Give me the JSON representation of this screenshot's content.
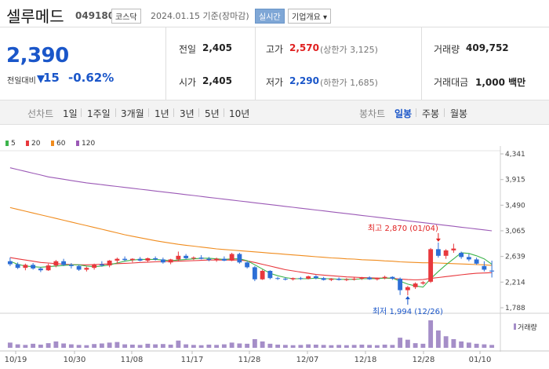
{
  "header": {
    "name": "셀루메드",
    "code": "049180",
    "market": "코스닥",
    "date_text": "2024.01.15 기준(장마감)",
    "realtime_label": "실시간",
    "company_menu_label": "기업개요 ▾"
  },
  "quote": {
    "price": "2,390",
    "change_label": "전일대비",
    "change_value": "15",
    "change_pct": "-0.62%",
    "prev_close_label": "전일",
    "prev_close": "2,405",
    "open_label": "시가",
    "open": "2,405",
    "high_label": "고가",
    "high": "2,570",
    "upper_limit": "(상한가 3,125)",
    "low_label": "저가",
    "low": "2,290",
    "lower_limit": "(하한가 1,685)",
    "volume_label": "거래량",
    "volume": "409,752",
    "value_label": "거래대금",
    "value": "1,000 백만"
  },
  "tabs": {
    "line_label": "선차트",
    "line": [
      "1일",
      "1주일",
      "3개월",
      "1년",
      "3년",
      "5년",
      "10년"
    ],
    "candle_label": "봉차트",
    "candle": [
      "일봉",
      "주봉",
      "월봉"
    ],
    "active_candle": "일봉"
  },
  "colors": {
    "up": "#e8383d",
    "down": "#2d6fd6",
    "ma5": "#3cb44b",
    "ma20": "#e8383d",
    "ma60": "#f08c1e",
    "ma120": "#9b59b6"
  },
  "chart_data": {
    "type": "candlestick",
    "legend": [
      {
        "name": "5",
        "color": "#3cb44b"
      },
      {
        "name": "20",
        "color": "#e8383d"
      },
      {
        "name": "60",
        "color": "#f08c1e"
      },
      {
        "name": "120",
        "color": "#9b59b6"
      }
    ],
    "y_ticks": [
      "4,341",
      "3,915",
      "3,490",
      "3,065",
      "2,639",
      "2,214",
      "1,788"
    ],
    "ylim": [
      1788,
      4341
    ],
    "x_ticks": [
      "10/19",
      "10/30",
      "11/08",
      "11/17",
      "11/28",
      "12/07",
      "12/18",
      "12/28",
      "01/10"
    ],
    "annotations": {
      "high": "최고 2,870 (01/04)",
      "low": "최저 1,994 (12/26)"
    },
    "volume_label": "거래량",
    "candles": [
      [
        2560,
        2620,
        2480,
        2510
      ],
      [
        2510,
        2540,
        2430,
        2450
      ],
      [
        2450,
        2520,
        2410,
        2500
      ],
      [
        2500,
        2530,
        2420,
        2440
      ],
      [
        2440,
        2460,
        2380,
        2410
      ],
      [
        2410,
        2520,
        2400,
        2490
      ],
      [
        2490,
        2580,
        2460,
        2560
      ],
      [
        2560,
        2600,
        2480,
        2500
      ],
      [
        2500,
        2530,
        2440,
        2480
      ],
      [
        2480,
        2500,
        2400,
        2420
      ],
      [
        2420,
        2470,
        2390,
        2450
      ],
      [
        2450,
        2520,
        2420,
        2510
      ],
      [
        2510,
        2560,
        2470,
        2490
      ],
      [
        2490,
        2580,
        2460,
        2570
      ],
      [
        2570,
        2620,
        2530,
        2600
      ],
      [
        2600,
        2640,
        2560,
        2580
      ],
      [
        2580,
        2610,
        2540,
        2600
      ],
      [
        2600,
        2630,
        2560,
        2570
      ],
      [
        2570,
        2620,
        2540,
        2610
      ],
      [
        2610,
        2640,
        2570,
        2590
      ],
      [
        2590,
        2620,
        2520,
        2540
      ],
      [
        2540,
        2600,
        2510,
        2590
      ],
      [
        2590,
        2720,
        2560,
        2650
      ],
      [
        2650,
        2680,
        2590,
        2610
      ],
      [
        2610,
        2640,
        2580,
        2620
      ],
      [
        2620,
        2660,
        2590,
        2600
      ],
      [
        2600,
        2630,
        2560,
        2580
      ],
      [
        2580,
        2620,
        2550,
        2600
      ],
      [
        2600,
        2640,
        2560,
        2570
      ],
      [
        2570,
        2700,
        2560,
        2680
      ],
      [
        2680,
        2700,
        2520,
        2540
      ],
      [
        2540,
        2560,
        2440,
        2460
      ],
      [
        2460,
        2480,
        2230,
        2260
      ],
      [
        2260,
        2420,
        2250,
        2400
      ],
      [
        2400,
        2410,
        2260,
        2280
      ],
      [
        2280,
        2300,
        2250,
        2270
      ],
      [
        2270,
        2290,
        2240,
        2260
      ],
      [
        2260,
        2290,
        2240,
        2280
      ],
      [
        2280,
        2300,
        2250,
        2270
      ],
      [
        2270,
        2320,
        2260,
        2310
      ],
      [
        2310,
        2330,
        2260,
        2280
      ],
      [
        2280,
        2300,
        2240,
        2250
      ],
      [
        2250,
        2280,
        2230,
        2270
      ],
      [
        2270,
        2290,
        2240,
        2250
      ],
      [
        2250,
        2280,
        2230,
        2260
      ],
      [
        2260,
        2290,
        2240,
        2270
      ],
      [
        2270,
        2300,
        2250,
        2290
      ],
      [
        2290,
        2310,
        2250,
        2260
      ],
      [
        2260,
        2290,
        2240,
        2280
      ],
      [
        2280,
        2320,
        2260,
        2300
      ],
      [
        2300,
        2310,
        2250,
        2270
      ],
      [
        2270,
        2290,
        2000,
        2080
      ],
      [
        2080,
        2150,
        1994,
        2130
      ],
      [
        2130,
        2210,
        2100,
        2190
      ],
      [
        2190,
        2230,
        2170,
        2210
      ],
      [
        2220,
        2780,
        2200,
        2760
      ],
      [
        2760,
        2870,
        2620,
        2650
      ],
      [
        2650,
        2760,
        2600,
        2740
      ],
      [
        2740,
        2850,
        2700,
        2770
      ],
      [
        2700,
        2720,
        2600,
        2630
      ],
      [
        2630,
        2680,
        2560,
        2590
      ],
      [
        2590,
        2620,
        2500,
        2520
      ],
      [
        2480,
        2560,
        2390,
        2420
      ],
      [
        2405,
        2570,
        2290,
        2390
      ]
    ],
    "ma": {
      "ma5": [
        2560,
        2510,
        2480,
        2470,
        2460,
        2470,
        2480,
        2490,
        2500,
        2500,
        2480,
        2470,
        2480,
        2500,
        2530,
        2560,
        2580,
        2590,
        2590,
        2590,
        2580,
        2570,
        2580,
        2590,
        2600,
        2610,
        2610,
        2600,
        2590,
        2600,
        2600,
        2570,
        2500,
        2430,
        2360,
        2320,
        2290,
        2270,
        2270,
        2270,
        2280,
        2270,
        2270,
        2260,
        2260,
        2260,
        2270,
        2270,
        2270,
        2280,
        2280,
        2230,
        2180,
        2150,
        2130,
        2270,
        2390,
        2500,
        2600,
        2700,
        2690,
        2650,
        2600,
        2510
      ],
      "ma20": [
        2620,
        2600,
        2580,
        2560,
        2540,
        2530,
        2520,
        2510,
        2505,
        2500,
        2500,
        2505,
        2510,
        2515,
        2520,
        2525,
        2530,
        2540,
        2545,
        2550,
        2555,
        2558,
        2560,
        2565,
        2570,
        2575,
        2580,
        2580,
        2580,
        2580,
        2580,
        2565,
        2540,
        2510,
        2480,
        2450,
        2420,
        2400,
        2380,
        2360,
        2340,
        2330,
        2320,
        2310,
        2300,
        2295,
        2290,
        2285,
        2280,
        2280,
        2275,
        2265,
        2255,
        2250,
        2255,
        2275,
        2290,
        2305,
        2320,
        2335,
        2350,
        2360,
        2365,
        2370
      ],
      "ma60": [
        3450,
        3420,
        3390,
        3360,
        3330,
        3300,
        3270,
        3240,
        3210,
        3180,
        3150,
        3120,
        3090,
        3060,
        3030,
        3000,
        2975,
        2950,
        2925,
        2900,
        2880,
        2860,
        2840,
        2825,
        2810,
        2795,
        2780,
        2765,
        2755,
        2745,
        2735,
        2725,
        2715,
        2705,
        2695,
        2685,
        2675,
        2665,
        2655,
        2645,
        2635,
        2625,
        2615,
        2610,
        2600,
        2595,
        2585,
        2580,
        2575,
        2565,
        2560,
        2550,
        2545,
        2540,
        2535,
        2535,
        2530,
        2525,
        2520,
        2515,
        2510,
        2505,
        2500,
        2490
      ],
      "ma120": [
        4110,
        4080,
        4050,
        4020,
        3990,
        3960,
        3940,
        3920,
        3900,
        3880,
        3860,
        3845,
        3830,
        3815,
        3800,
        3785,
        3770,
        3755,
        3740,
        3725,
        3710,
        3695,
        3680,
        3665,
        3650,
        3635,
        3620,
        3605,
        3590,
        3575,
        3560,
        3545,
        3530,
        3515,
        3500,
        3485,
        3470,
        3455,
        3440,
        3425,
        3410,
        3395,
        3380,
        3365,
        3350,
        3335,
        3320,
        3305,
        3290,
        3275,
        3260,
        3245,
        3230,
        3215,
        3200,
        3185,
        3170,
        3155,
        3140,
        3125,
        3110,
        3095,
        3080,
        3065
      ]
    },
    "volume": [
      18,
      12,
      10,
      14,
      11,
      16,
      22,
      15,
      12,
      10,
      9,
      13,
      15,
      18,
      20,
      12,
      11,
      10,
      14,
      12,
      13,
      11,
      25,
      12,
      10,
      9,
      11,
      10,
      12,
      18,
      15,
      14,
      30,
      22,
      14,
      11,
      10,
      9,
      10,
      12,
      11,
      10,
      9,
      10,
      9,
      10,
      11,
      10,
      9,
      11,
      10,
      35,
      28,
      16,
      14,
      95,
      60,
      40,
      30,
      22,
      18,
      14,
      12,
      10
    ]
  }
}
